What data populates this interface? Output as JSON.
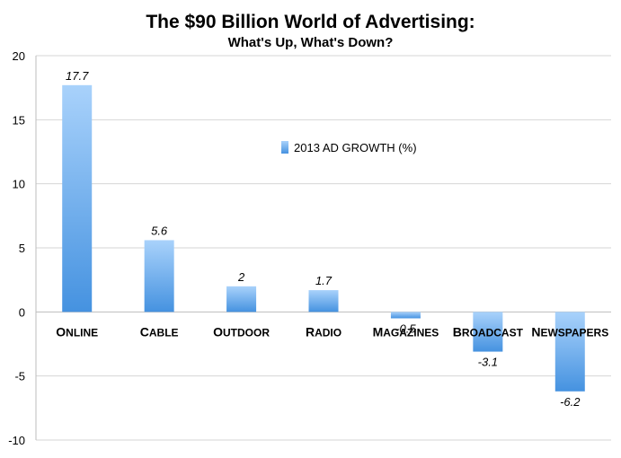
{
  "chart_data": {
    "type": "bar",
    "title": "The $90 Billion World of Advertising:",
    "subtitle": "What's Up, What's Down?",
    "categories": [
      "Online",
      "Cable",
      "Outdoor",
      "Radio",
      "Magazines",
      "Broadcast",
      "Newspapers"
    ],
    "series": [
      {
        "name": "2013 AD GROWTH (%)",
        "values": [
          17.7,
          5.6,
          2,
          1.7,
          -0.5,
          -3.1,
          -6.2
        ]
      }
    ],
    "data_labels": [
      "17.7",
      "5.6",
      "2",
      "1.7",
      "-0.5",
      "-3.1",
      "-6.2"
    ],
    "xlabel": "",
    "ylabel": "",
    "ylim": [
      -10,
      20
    ],
    "yticks": [
      20,
      15,
      10,
      5,
      0,
      -5,
      -10
    ],
    "ytick_labels": [
      "20",
      "15",
      "10",
      "5",
      "0",
      "-5",
      "-10"
    ],
    "grid": true,
    "legend": "inside-top-center",
    "colors": {
      "bar_top": "#a9d2fb",
      "bar_bottom": "#4592e0",
      "grid": "#d6d6d6",
      "axis": "#bdbdbd"
    }
  }
}
